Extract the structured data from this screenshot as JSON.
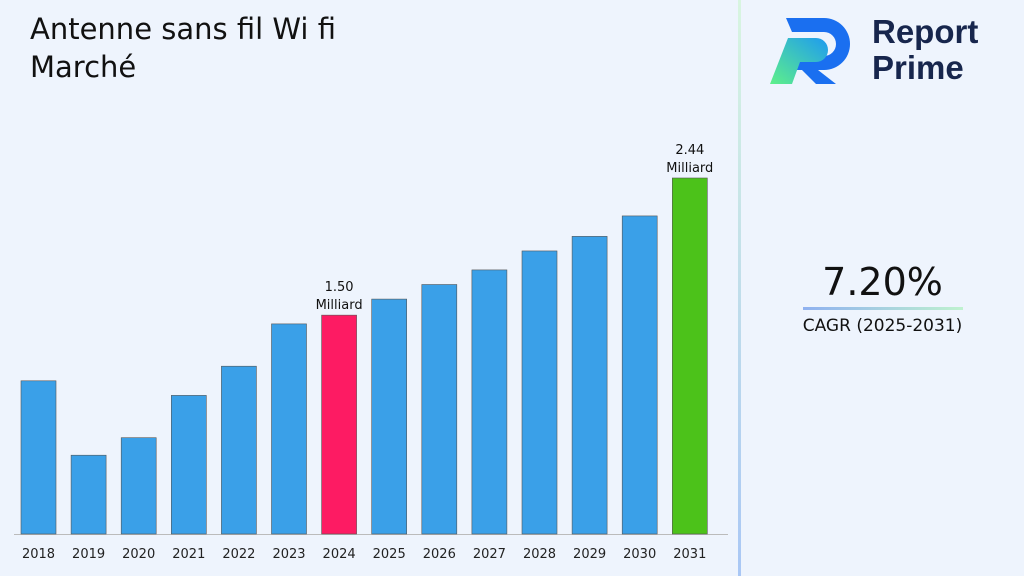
{
  "title": "Antenne sans fil Wi fi Marché",
  "brand": {
    "line1": "Report",
    "line2": "Prime"
  },
  "cagr": {
    "value": "7.20%",
    "label": "CAGR (2025-2031)"
  },
  "colors": {
    "default": "#3aa0e8",
    "highlight_2024": "#fd1b63",
    "highlight_2031": "#4cc21a"
  },
  "chart_data": {
    "type": "bar",
    "title": "Antenne sans fil Wi fi Marché",
    "categories": [
      "2018",
      "2019",
      "2020",
      "2021",
      "2022",
      "2023",
      "2024",
      "2025",
      "2026",
      "2027",
      "2028",
      "2029",
      "2030",
      "2031"
    ],
    "values": [
      1.05,
      0.54,
      0.66,
      0.95,
      1.15,
      1.44,
      1.5,
      1.61,
      1.71,
      1.81,
      1.94,
      2.04,
      2.18,
      2.44
    ],
    "unit": "Milliard",
    "annotations": [
      {
        "category": "2024",
        "text": "1.50",
        "subtext": "Milliard"
      },
      {
        "category": "2031",
        "text": "2.44",
        "subtext": "Milliard"
      }
    ],
    "xlabel": "",
    "ylabel": "",
    "ylim": [
      0,
      2.44
    ],
    "grid": false
  }
}
